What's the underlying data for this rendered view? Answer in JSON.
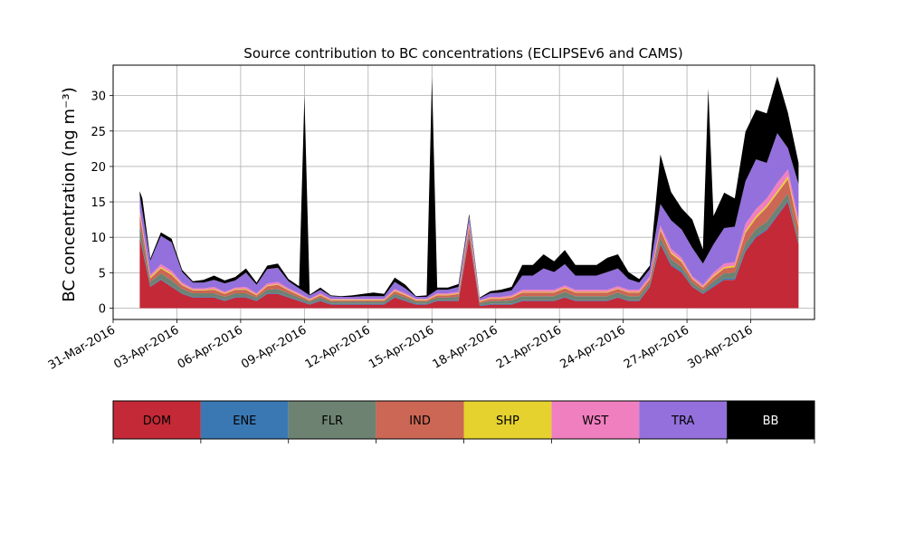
{
  "chart_data": {
    "type": "area",
    "stacked": true,
    "title": "Source contribution to BC concentrations (ECLIPSEv6 and CAMS)",
    "ylabel": "BC concentration (ng m⁻³)",
    "xlabel": "",
    "ylim": [
      -1.6,
      34.3
    ],
    "xlim": [
      "2016-03-31T00:00",
      "2016-05-03T00:00"
    ],
    "yticks": [
      0,
      5,
      10,
      15,
      20,
      25,
      30
    ],
    "xticks": [
      "31-Mar-2016",
      "03-Apr-2016",
      "06-Apr-2016",
      "09-Apr-2016",
      "12-Apr-2016",
      "15-Apr-2016",
      "18-Apr-2016",
      "21-Apr-2016",
      "24-Apr-2016",
      "27-Apr-2016",
      "30-Apr-2016"
    ],
    "grid": true,
    "x": [
      "2016-04-01T06:00",
      "2016-04-01T18:00",
      "2016-04-02T06:00",
      "2016-04-02T18:00",
      "2016-04-03T06:00",
      "2016-04-03T18:00",
      "2016-04-04T06:00",
      "2016-04-04T18:00",
      "2016-04-05T06:00",
      "2016-04-05T18:00",
      "2016-04-06T06:00",
      "2016-04-06T18:00",
      "2016-04-07T06:00",
      "2016-04-07T18:00",
      "2016-04-08T06:00",
      "2016-04-08T18:00",
      "2016-04-09T06:00",
      "2016-04-09T18:00",
      "2016-04-10T06:00",
      "2016-04-10T18:00",
      "2016-04-11T06:00",
      "2016-04-11T18:00",
      "2016-04-12T06:00",
      "2016-04-12T18:00",
      "2016-04-13T06:00",
      "2016-04-13T18:00",
      "2016-04-14T06:00",
      "2016-04-14T18:00",
      "2016-04-15T06:00",
      "2016-04-15T18:00",
      "2016-04-16T06:00",
      "2016-04-16T18:00",
      "2016-04-17T06:00",
      "2016-04-17T18:00",
      "2016-04-18T06:00",
      "2016-04-18T18:00",
      "2016-04-19T06:00",
      "2016-04-19T18:00",
      "2016-04-20T06:00",
      "2016-04-20T18:00",
      "2016-04-21T06:00",
      "2016-04-21T18:00",
      "2016-04-22T06:00",
      "2016-04-22T18:00",
      "2016-04-23T06:00",
      "2016-04-23T18:00",
      "2016-04-24T06:00",
      "2016-04-24T18:00",
      "2016-04-25T06:00",
      "2016-04-25T18:00",
      "2016-04-26T06:00",
      "2016-04-26T18:00",
      "2016-04-27T06:00",
      "2016-04-27T18:00",
      "2016-04-28T06:00",
      "2016-04-28T18:00",
      "2016-04-29T06:00",
      "2016-04-29T18:00",
      "2016-04-30T06:00",
      "2016-04-30T18:00",
      "2016-05-01T06:00",
      "2016-05-01T18:00",
      "2016-05-02T06:00"
    ],
    "series": [
      {
        "name": "DOM",
        "color": "#c32937",
        "values": [
          10,
          3,
          4,
          3,
          2,
          1.5,
          1.5,
          1.5,
          1,
          1.5,
          1.5,
          1,
          2,
          2,
          1.5,
          1,
          0.5,
          1,
          0.5,
          0.5,
          0.5,
          0.5,
          0.5,
          0.5,
          1.5,
          1,
          0.5,
          0.5,
          1,
          1,
          1,
          10,
          0.3,
          0.5,
          0.5,
          0.5,
          1,
          1,
          1,
          1,
          1.5,
          1,
          1,
          1,
          1,
          1.5,
          1,
          1,
          3,
          9,
          6,
          5,
          3,
          2,
          3,
          4,
          4,
          8,
          10,
          11,
          13,
          15,
          9
        ]
      },
      {
        "name": "ENE",
        "color": "#3a78b4",
        "values": [
          0.2,
          0.1,
          0.1,
          0.1,
          0.1,
          0.1,
          0.1,
          0.1,
          0.1,
          0.1,
          0.1,
          0.1,
          0.1,
          0.1,
          0.1,
          0.1,
          0.1,
          0.1,
          0.1,
          0.1,
          0.1,
          0.1,
          0.1,
          0.1,
          0.1,
          0.1,
          0.1,
          0.1,
          0.1,
          0.1,
          0.1,
          0.1,
          0.1,
          0.1,
          0.1,
          0.1,
          0.1,
          0.1,
          0.1,
          0.1,
          0.1,
          0.1,
          0.1,
          0.1,
          0.1,
          0.1,
          0.1,
          0.1,
          0.1,
          0.2,
          0.2,
          0.2,
          0.1,
          0.1,
          0.2,
          0.2,
          0.2,
          0.2,
          0.2,
          0.2,
          0.2,
          0.2,
          0.1
        ]
      },
      {
        "name": "FLR",
        "color": "#6e8272",
        "values": [
          1.5,
          0.6,
          0.8,
          0.8,
          0.6,
          0.5,
          0.5,
          0.5,
          0.5,
          0.5,
          0.5,
          0.4,
          0.5,
          0.6,
          0.5,
          0.4,
          0.3,
          0.4,
          0.3,
          0.3,
          0.3,
          0.3,
          0.3,
          0.3,
          0.4,
          0.4,
          0.3,
          0.3,
          0.4,
          0.4,
          0.5,
          0.6,
          0.3,
          0.4,
          0.4,
          0.5,
          0.6,
          0.6,
          0.6,
          0.6,
          0.7,
          0.6,
          0.6,
          0.6,
          0.6,
          0.6,
          0.6,
          0.6,
          0.5,
          0.8,
          0.7,
          0.6,
          0.5,
          0.4,
          0.6,
          0.7,
          0.8,
          0.9,
          1,
          1,
          1,
          1,
          0.8
        ]
      },
      {
        "name": "IND",
        "color": "#cc6655",
        "values": [
          1.5,
          0.5,
          0.7,
          0.8,
          0.5,
          0.4,
          0.4,
          0.5,
          0.4,
          0.5,
          0.5,
          0.3,
          0.5,
          0.6,
          0.4,
          0.3,
          0.2,
          0.3,
          0.2,
          0.2,
          0.2,
          0.2,
          0.2,
          0.2,
          0.4,
          0.3,
          0.2,
          0.2,
          0.3,
          0.3,
          0.4,
          0.8,
          0.2,
          0.3,
          0.3,
          0.4,
          0.5,
          0.5,
          0.5,
          0.5,
          0.5,
          0.5,
          0.5,
          0.5,
          0.5,
          0.5,
          0.5,
          0.5,
          0.5,
          1,
          0.8,
          0.7,
          0.5,
          0.4,
          0.6,
          0.7,
          0.8,
          1.5,
          1.5,
          2,
          2,
          2,
          1.5
        ]
      },
      {
        "name": "SHP",
        "color": "#e6d22f",
        "values": [
          0.3,
          0.2,
          0.2,
          0.2,
          0.1,
          0.1,
          0.1,
          0.1,
          0.1,
          0.1,
          0.1,
          0.1,
          0.1,
          0.1,
          0.1,
          0.1,
          0.1,
          0.1,
          0.1,
          0.1,
          0.1,
          0.1,
          0.1,
          0.1,
          0.1,
          0.1,
          0.1,
          0.1,
          0.1,
          0.1,
          0.1,
          0.2,
          0.1,
          0.1,
          0.1,
          0.1,
          0.1,
          0.1,
          0.1,
          0.1,
          0.1,
          0.1,
          0.1,
          0.1,
          0.1,
          0.1,
          0.1,
          0.1,
          0.1,
          0.2,
          0.2,
          0.2,
          0.1,
          0.1,
          0.2,
          0.2,
          0.2,
          0.3,
          0.3,
          0.3,
          0.3,
          0.4,
          0.3
        ]
      },
      {
        "name": "WST",
        "color": "#f07fbf",
        "values": [
          0.5,
          0.3,
          0.4,
          0.4,
          0.3,
          0.2,
          0.2,
          0.3,
          0.2,
          0.2,
          0.3,
          0.2,
          0.3,
          0.3,
          0.2,
          0.2,
          0.1,
          0.2,
          0.1,
          0.1,
          0.1,
          0.1,
          0.1,
          0.1,
          0.2,
          0.2,
          0.1,
          0.1,
          0.2,
          0.2,
          0.2,
          0.4,
          0.1,
          0.2,
          0.2,
          0.2,
          0.3,
          0.3,
          0.3,
          0.3,
          0.3,
          0.3,
          0.3,
          0.3,
          0.3,
          0.3,
          0.3,
          0.3,
          0.3,
          0.5,
          0.5,
          0.4,
          0.3,
          0.3,
          0.4,
          0.5,
          0.5,
          1,
          1,
          1,
          1.2,
          1,
          0.8
        ]
      },
      {
        "name": "TRA",
        "color": "#9370db",
        "values": [
          2,
          2,
          4,
          4,
          1.5,
          0.8,
          0.8,
          1,
          1.2,
          1,
          2,
          1.2,
          2,
          2,
          1,
          0.7,
          0.5,
          0.5,
          0.4,
          0.3,
          0.3,
          0.4,
          0.4,
          0.4,
          1,
          0.7,
          0.3,
          0.3,
          0.5,
          0.5,
          0.7,
          0.8,
          0.3,
          0.5,
          0.6,
          0.7,
          2,
          2,
          3,
          2.5,
          3,
          2,
          2,
          2,
          2.5,
          2.5,
          1.5,
          1,
          1,
          3,
          4,
          4,
          4,
          3,
          4,
          5,
          5,
          6,
          7,
          5,
          7,
          3,
          5
        ]
      },
      {
        "name": "BB",
        "color": "#000000",
        "values": [
          0.5,
          0.3,
          0.5,
          0.5,
          0.3,
          0.2,
          0.4,
          0.6,
          0.4,
          0.5,
          0.6,
          0.3,
          0.5,
          0.6,
          0.3,
          0.3,
          0.1,
          0.3,
          0.1,
          0.1,
          0.2,
          0.3,
          0.5,
          0.3,
          0.6,
          0.5,
          0.1,
          0.2,
          0.3,
          0.3,
          0.4,
          0.4,
          0.1,
          0.3,
          0.4,
          0.5,
          1.5,
          1.5,
          2,
          1.5,
          2,
          1.5,
          1.5,
          1.5,
          2,
          2,
          1,
          0.5,
          0.5,
          7,
          4,
          3,
          4,
          2,
          4,
          5,
          4,
          7,
          7,
          7,
          8,
          5,
          3
        ]
      }
    ],
    "peaks": [
      {
        "x": "2016-04-01T09:00",
        "total": 15.5
      },
      {
        "x": "2016-04-09T00:00",
        "total": 30.0
      },
      {
        "x": "2016-04-15T00:00",
        "total": 32.6
      },
      {
        "x": "2016-04-28T00:00",
        "total": 31.0
      },
      {
        "x": "2016-05-02T06:00",
        "total": 21.0
      }
    ],
    "legend": {
      "position": "bottom",
      "style": "colorbar"
    }
  }
}
